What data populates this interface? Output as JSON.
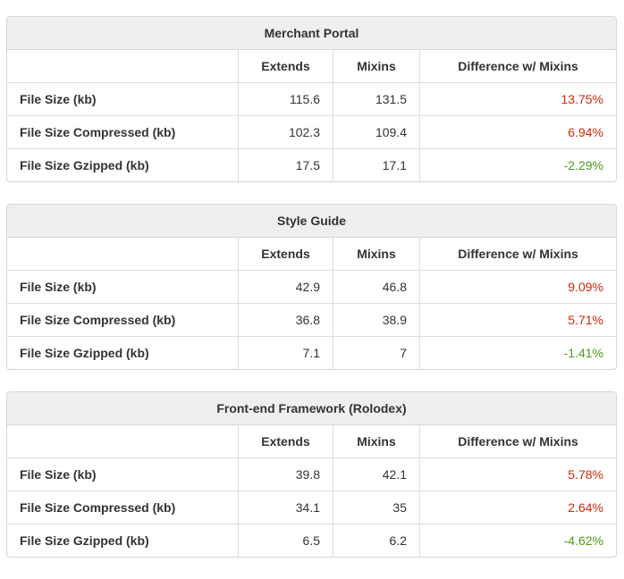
{
  "colors": {
    "positive_diff": "#cc2a0b",
    "negative_diff": "#4a9a18"
  },
  "columns": [
    "Extends",
    "Mixins",
    "Difference w/ Mixins"
  ],
  "tables": [
    {
      "title": "Merchant Portal",
      "rows": [
        {
          "label": "File Size (kb)",
          "extends": "115.6",
          "mixins": "131.5",
          "diff": "13.75%",
          "sign": "pos"
        },
        {
          "label": "File Size Compressed (kb)",
          "extends": "102.3",
          "mixins": "109.4",
          "diff": "6.94%",
          "sign": "pos"
        },
        {
          "label": "File Size Gzipped (kb)",
          "extends": "17.5",
          "mixins": "17.1",
          "diff": "-2.29%",
          "sign": "neg"
        }
      ]
    },
    {
      "title": "Style Guide",
      "rows": [
        {
          "label": "File Size (kb)",
          "extends": "42.9",
          "mixins": "46.8",
          "diff": "9.09%",
          "sign": "pos"
        },
        {
          "label": "File Size Compressed (kb)",
          "extends": "36.8",
          "mixins": "38.9",
          "diff": "5.71%",
          "sign": "pos"
        },
        {
          "label": "File Size Gzipped (kb)",
          "extends": "7.1",
          "mixins": "7",
          "diff": "-1.41%",
          "sign": "neg"
        }
      ]
    },
    {
      "title": "Front-end Framework (Rolodex)",
      "rows": [
        {
          "label": "File Size (kb)",
          "extends": "39.8",
          "mixins": "42.1",
          "diff": "5.78%",
          "sign": "pos"
        },
        {
          "label": "File Size Compressed (kb)",
          "extends": "34.1",
          "mixins": "35",
          "diff": "2.64%",
          "sign": "pos"
        },
        {
          "label": "File Size Gzipped (kb)",
          "extends": "6.5",
          "mixins": "6.2",
          "diff": "-4.62%",
          "sign": "neg"
        }
      ]
    }
  ]
}
